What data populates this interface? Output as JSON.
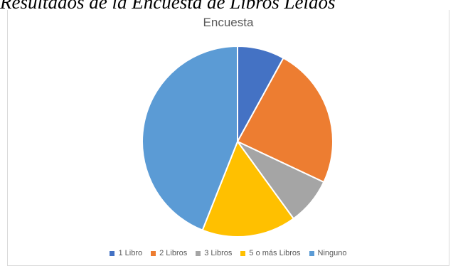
{
  "heading": "Resultados de la Encuesta de Libros Leídos",
  "chart_data": {
    "type": "pie",
    "title": "Encuesta",
    "categories": [
      "1 Libro",
      "2 Libros",
      "3 Libros",
      "5 o más Libros",
      "Ninguno"
    ],
    "values": [
      8,
      24,
      8,
      16,
      44
    ],
    "colors": [
      "#4472c4",
      "#ed7d31",
      "#a5a5a5",
      "#ffc000",
      "#5b9bd5"
    ],
    "legend_position": "bottom",
    "start_angle": "top, clockwise"
  }
}
